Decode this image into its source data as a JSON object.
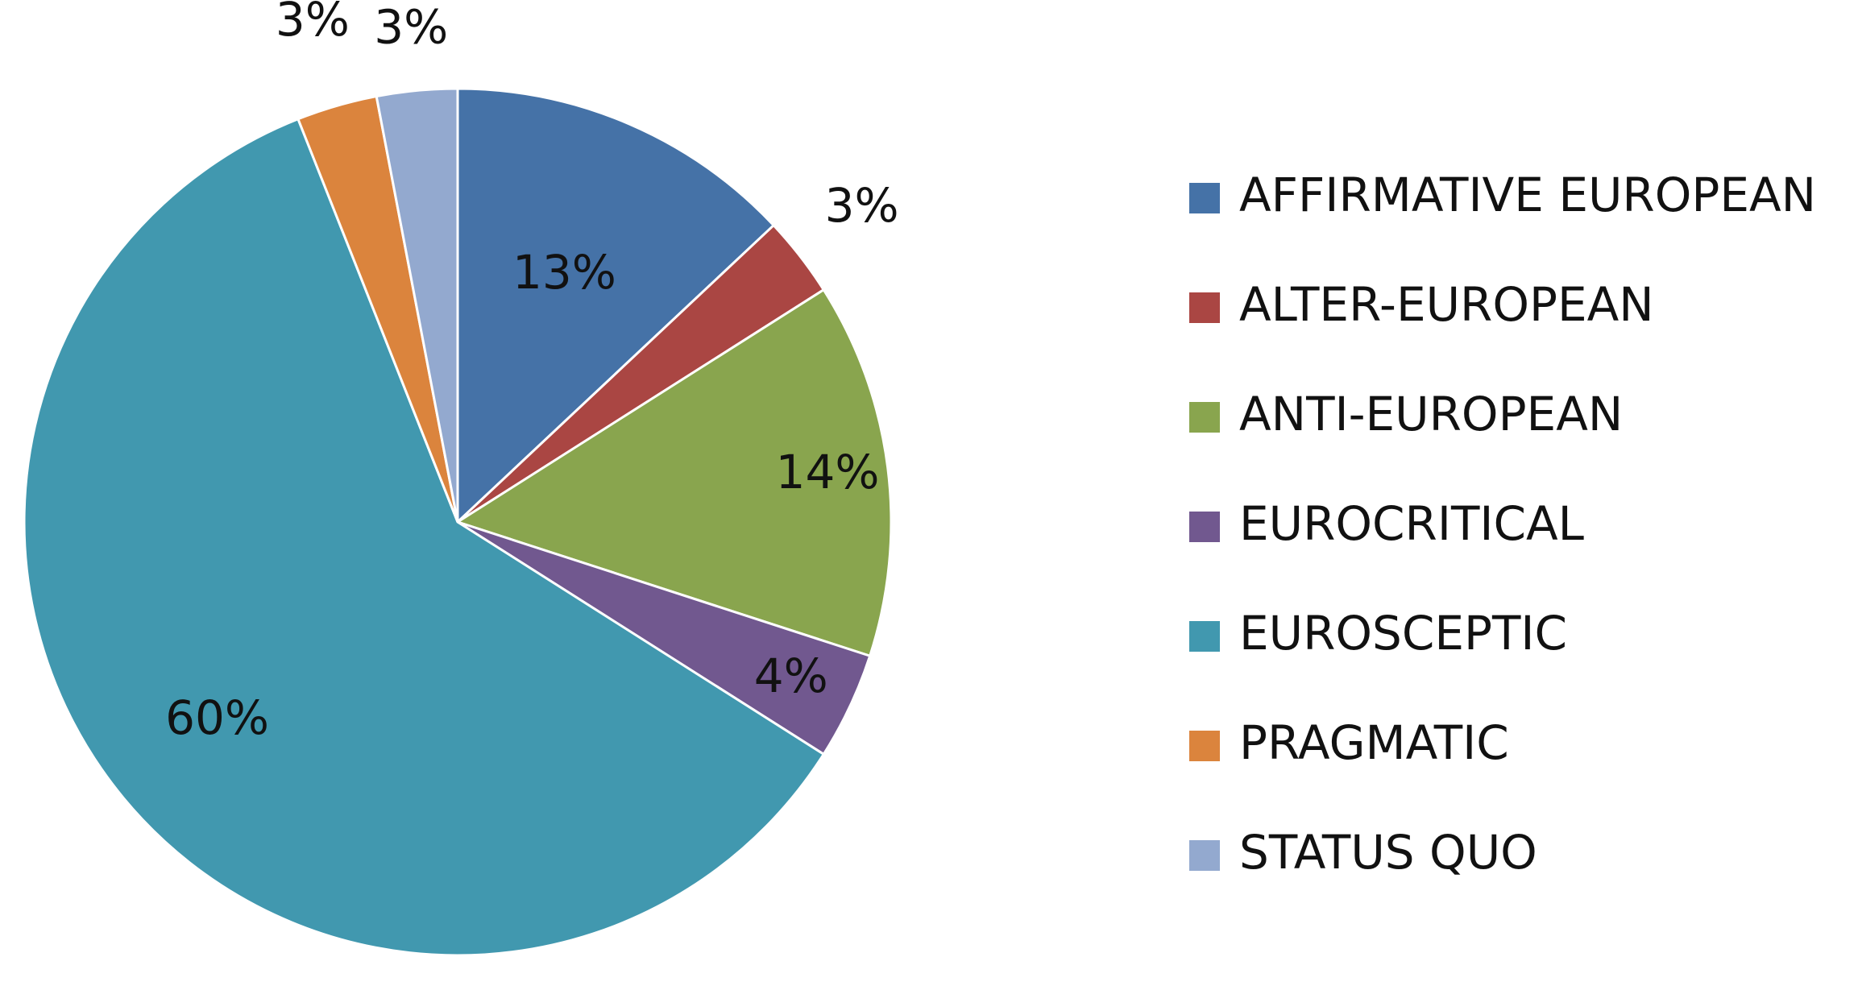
{
  "chart_data": {
    "type": "pie",
    "title": "",
    "categories": [
      "AFFIRMATIVE EUROPEAN",
      "ALTER-EUROPEAN",
      "ANTI-EUROPEAN",
      "EUROCRITICAL",
      "EUROSCEPTIC",
      "PRAGMATIC",
      "STATUS QUO"
    ],
    "values": [
      13,
      3,
      14,
      4,
      60,
      3,
      3
    ],
    "labels": [
      "13%",
      "3%",
      "14%",
      "4%",
      "60%",
      "3%",
      "3%"
    ],
    "colors": [
      "#4572A7",
      "#AA4643",
      "#89A54E",
      "#71588F",
      "#4198AF",
      "#DB843D",
      "#93A9CF"
    ],
    "legend_position": "right"
  }
}
